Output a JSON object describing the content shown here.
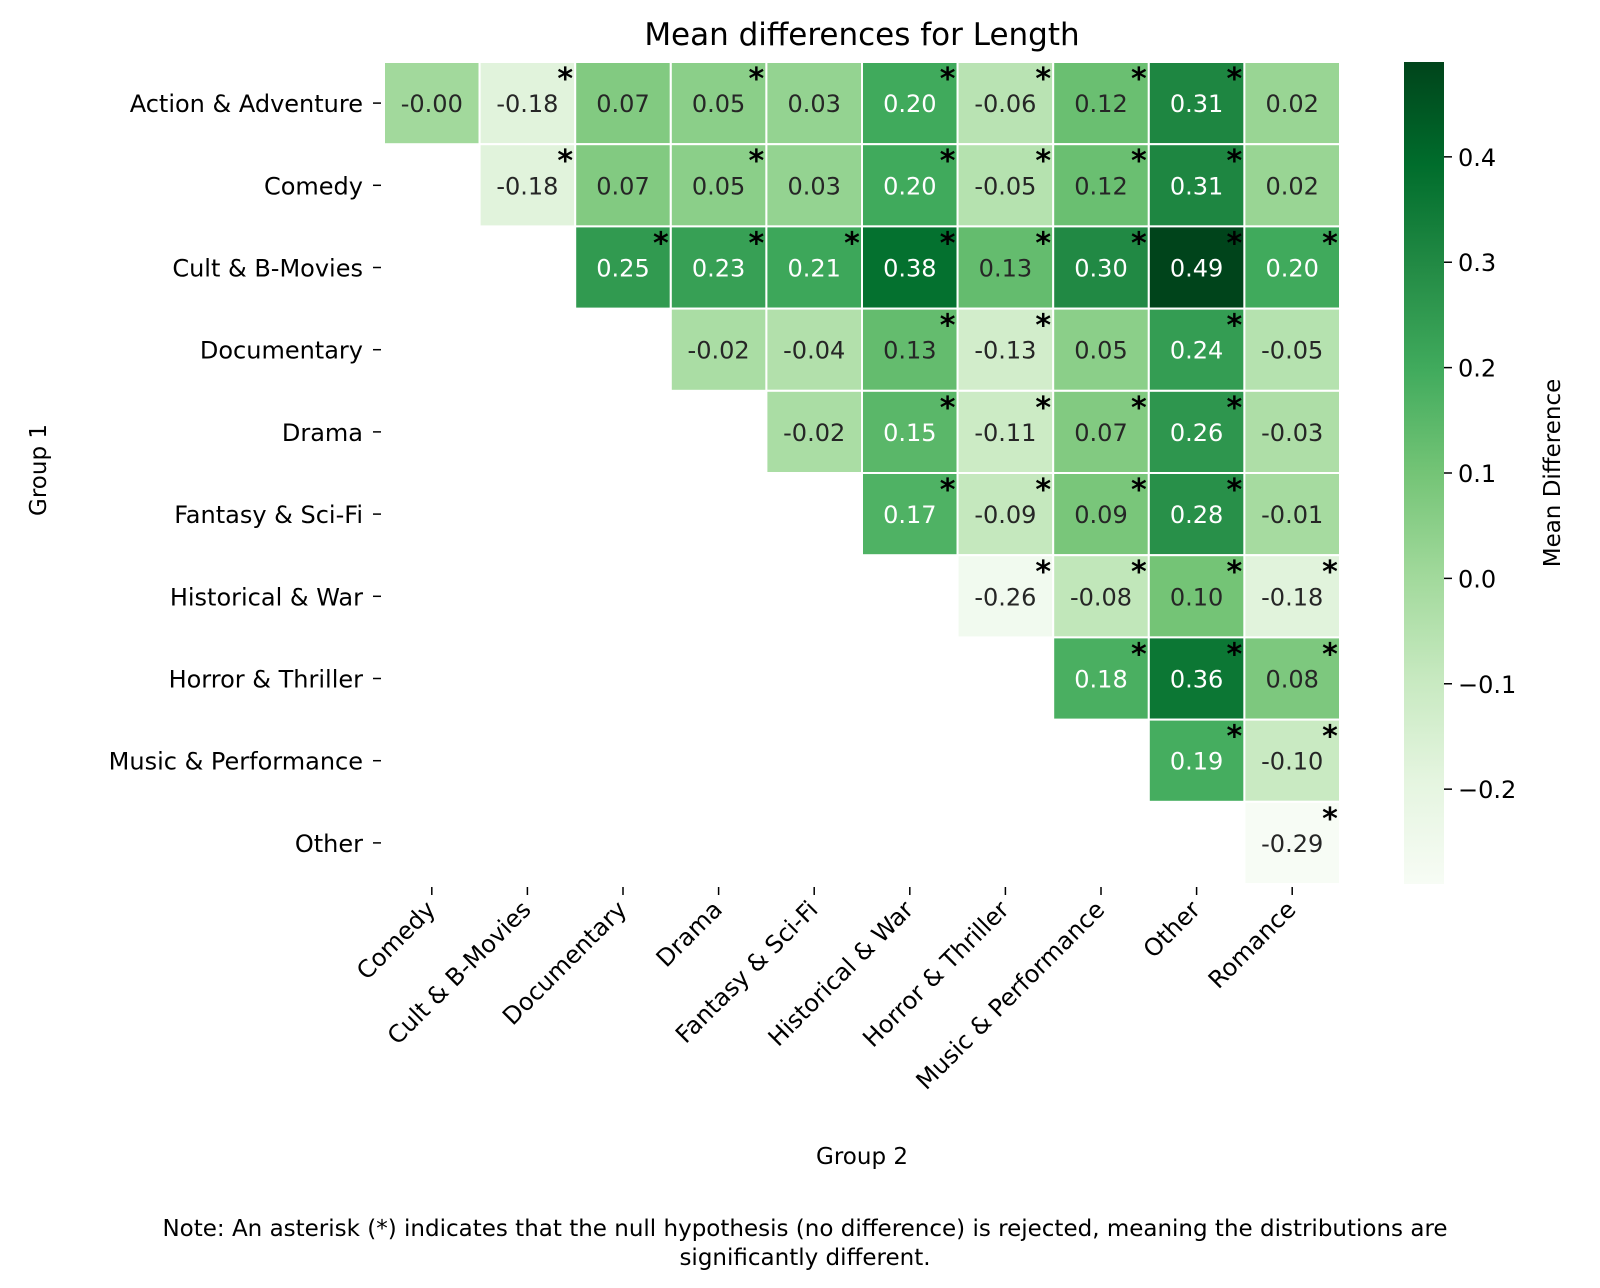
{
  "chart_data": {
    "type": "heatmap",
    "title": "Mean differences for Length",
    "xlabel": "Group 2",
    "ylabel": "Group 1",
    "row_labels": [
      "Action & Adventure",
      "Comedy",
      "Cult & B-Movies",
      "Documentary",
      "Drama",
      "Fantasy & Sci-Fi",
      "Historical & War",
      "Horror & Thriller",
      "Music & Performance",
      "Other"
    ],
    "col_labels": [
      "Comedy",
      "Cult & B-Movies",
      "Documentary",
      "Drama",
      "Fantasy & Sci-Fi",
      "Historical & War",
      "Horror & Thriller",
      "Music & Performance",
      "Other",
      "Romance"
    ],
    "values": [
      [
        -0.0,
        -0.18,
        0.07,
        0.05,
        0.03,
        0.2,
        -0.06,
        0.12,
        0.31,
        0.02
      ],
      [
        null,
        -0.18,
        0.07,
        0.05,
        0.03,
        0.2,
        -0.05,
        0.12,
        0.31,
        0.02
      ],
      [
        null,
        null,
        0.25,
        0.23,
        0.21,
        0.38,
        0.13,
        0.3,
        0.49,
        0.2
      ],
      [
        null,
        null,
        null,
        -0.02,
        -0.04,
        0.13,
        -0.13,
        0.05,
        0.24,
        -0.05
      ],
      [
        null,
        null,
        null,
        null,
        -0.02,
        0.15,
        -0.11,
        0.07,
        0.26,
        -0.03
      ],
      [
        null,
        null,
        null,
        null,
        null,
        0.17,
        -0.09,
        0.09,
        0.28,
        -0.01
      ],
      [
        null,
        null,
        null,
        null,
        null,
        null,
        -0.26,
        -0.08,
        0.1,
        -0.18
      ],
      [
        null,
        null,
        null,
        null,
        null,
        null,
        null,
        0.18,
        0.36,
        0.08
      ],
      [
        null,
        null,
        null,
        null,
        null,
        null,
        null,
        null,
        0.19,
        -0.1
      ],
      [
        null,
        null,
        null,
        null,
        null,
        null,
        null,
        null,
        null,
        -0.29
      ]
    ],
    "labels": [
      [
        "-0.00",
        "-0.18",
        "0.07",
        "0.05",
        "0.03",
        "0.20",
        "-0.06",
        "0.12",
        "0.31",
        "0.02"
      ],
      [
        null,
        "-0.18",
        "0.07",
        "0.05",
        "0.03",
        "0.20",
        "-0.05",
        "0.12",
        "0.31",
        "0.02"
      ],
      [
        null,
        null,
        "0.25",
        "0.23",
        "0.21",
        "0.38",
        "0.13",
        "0.30",
        "0.49",
        "0.20"
      ],
      [
        null,
        null,
        null,
        "-0.02",
        "-0.04",
        "0.13",
        "-0.13",
        "0.05",
        "0.24",
        "-0.05"
      ],
      [
        null,
        null,
        null,
        null,
        "-0.02",
        "0.15",
        "-0.11",
        "0.07",
        "0.26",
        "-0.03"
      ],
      [
        null,
        null,
        null,
        null,
        null,
        "0.17",
        "-0.09",
        "0.09",
        "0.28",
        "-0.01"
      ],
      [
        null,
        null,
        null,
        null,
        null,
        null,
        "-0.26",
        "-0.08",
        "0.10",
        "-0.18"
      ],
      [
        null,
        null,
        null,
        null,
        null,
        null,
        null,
        "0.18",
        "0.36",
        "0.08"
      ],
      [
        null,
        null,
        null,
        null,
        null,
        null,
        null,
        null,
        "0.19",
        "-0.10"
      ],
      [
        null,
        null,
        null,
        null,
        null,
        null,
        null,
        null,
        null,
        "-0.29"
      ]
    ],
    "significant": [
      [
        false,
        true,
        false,
        true,
        false,
        true,
        true,
        true,
        true,
        false
      ],
      [
        false,
        true,
        false,
        true,
        false,
        true,
        true,
        true,
        true,
        false
      ],
      [
        false,
        false,
        true,
        true,
        true,
        true,
        true,
        true,
        true,
        true
      ],
      [
        false,
        false,
        false,
        false,
        false,
        true,
        true,
        false,
        true,
        false
      ],
      [
        false,
        false,
        false,
        false,
        false,
        true,
        true,
        true,
        true,
        false
      ],
      [
        false,
        false,
        false,
        false,
        false,
        true,
        true,
        true,
        true,
        false
      ],
      [
        false,
        false,
        false,
        false,
        false,
        false,
        true,
        true,
        true,
        true
      ],
      [
        false,
        false,
        false,
        false,
        false,
        false,
        false,
        true,
        true,
        true
      ],
      [
        false,
        false,
        false,
        false,
        false,
        false,
        false,
        false,
        true,
        true
      ],
      [
        false,
        false,
        false,
        false,
        false,
        false,
        false,
        false,
        false,
        true
      ]
    ],
    "asterisk_symbol": "*",
    "colorbar": {
      "label": "Mean Difference",
      "vmin": -0.29,
      "vmax": 0.49,
      "ticks": [
        0.4,
        0.3,
        0.2,
        0.1,
        0.0,
        -0.1,
        -0.2
      ],
      "tick_labels": [
        "0.4",
        "0.3",
        "0.2",
        "0.1",
        "0.0",
        "−0.1",
        "−0.2"
      ],
      "colormap": "Greens",
      "colormap_stops": [
        "#f7fcf5",
        "#e5f5e0",
        "#c7e9c0",
        "#a1d99b",
        "#74c476",
        "#41ab5d",
        "#238b45",
        "#006d2c",
        "#00441b"
      ]
    },
    "note": "Note: An asterisk (*) indicates that the null hypothesis (no difference) is rejected, meaning the distributions are significantly different."
  }
}
